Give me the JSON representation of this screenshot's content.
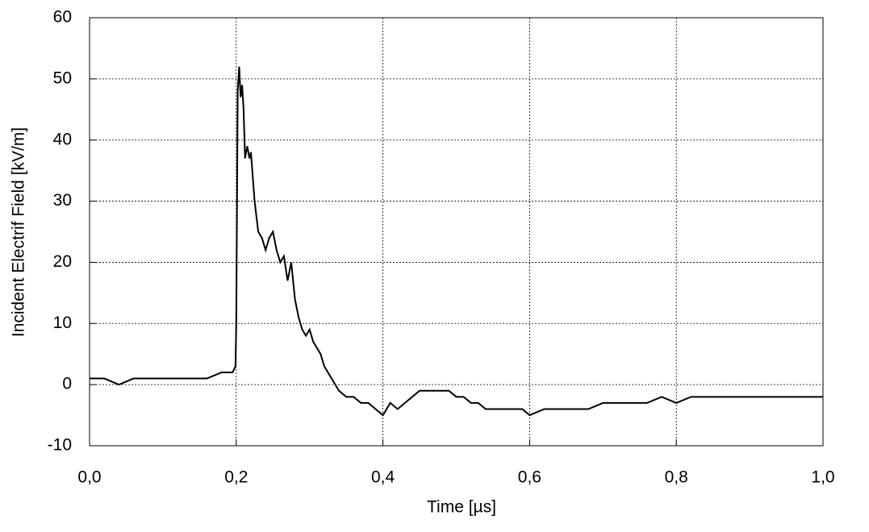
{
  "chart_data": {
    "type": "line",
    "x_label": "Time [µs]",
    "y_label": "Incident Electrif Field [kV/m]",
    "xlim": [
      0,
      1.0
    ],
    "ylim": [
      -10,
      60
    ],
    "xticks": [
      {
        "value": 0,
        "label": "0,0"
      },
      {
        "value": 0.2,
        "label": "0,2"
      },
      {
        "value": 0.4,
        "label": "0,4"
      },
      {
        "value": 0.6,
        "label": "0,6"
      },
      {
        "value": 0.8,
        "label": "0,8"
      },
      {
        "value": 1.0,
        "label": "1,0"
      }
    ],
    "yticks": [
      -10,
      0,
      10,
      20,
      30,
      40,
      50,
      60
    ],
    "grid": true,
    "color": "#000000",
    "x": [
      0,
      0.02,
      0.04,
      0.06,
      0.08,
      0.1,
      0.12,
      0.14,
      0.16,
      0.18,
      0.195,
      0.199,
      0.2,
      0.202,
      0.204,
      0.206,
      0.208,
      0.21,
      0.212,
      0.215,
      0.218,
      0.22,
      0.225,
      0.23,
      0.235,
      0.24,
      0.245,
      0.25,
      0.255,
      0.26,
      0.265,
      0.27,
      0.275,
      0.28,
      0.285,
      0.29,
      0.295,
      0.3,
      0.305,
      0.31,
      0.315,
      0.32,
      0.325,
      0.33,
      0.335,
      0.34,
      0.35,
      0.36,
      0.37,
      0.38,
      0.39,
      0.4,
      0.41,
      0.42,
      0.43,
      0.44,
      0.45,
      0.46,
      0.47,
      0.48,
      0.49,
      0.5,
      0.51,
      0.52,
      0.53,
      0.54,
      0.55,
      0.56,
      0.57,
      0.58,
      0.59,
      0.6,
      0.62,
      0.64,
      0.66,
      0.68,
      0.7,
      0.72,
      0.74,
      0.76,
      0.78,
      0.8,
      0.82,
      0.84,
      0.86,
      0.88,
      0.9,
      0.92,
      0.94,
      0.96,
      0.98,
      1.0
    ],
    "values": [
      1,
      1,
      0,
      1,
      1,
      1,
      1,
      1,
      1,
      2,
      2,
      3,
      10,
      48,
      52,
      47,
      49,
      45,
      37,
      39,
      37,
      38,
      30,
      25,
      24,
      22,
      24,
      25,
      22,
      20,
      21,
      17,
      20,
      14,
      11,
      9,
      8,
      9,
      7,
      6,
      5,
      3,
      2,
      1,
      0,
      -1,
      -2,
      -2,
      -3,
      -3,
      -4,
      -5,
      -3,
      -4,
      -3,
      -2,
      -1,
      -1,
      -1,
      -1,
      -1,
      -2,
      -2,
      -3,
      -3,
      -4,
      -4,
      -4,
      -4,
      -4,
      -4,
      -5,
      -4,
      -4,
      -4,
      -4,
      -3,
      -3,
      -3,
      -3,
      -2,
      -3,
      -2,
      -2,
      -2,
      -2,
      -2,
      -2,
      -2,
      -2,
      -2,
      -2
    ]
  }
}
